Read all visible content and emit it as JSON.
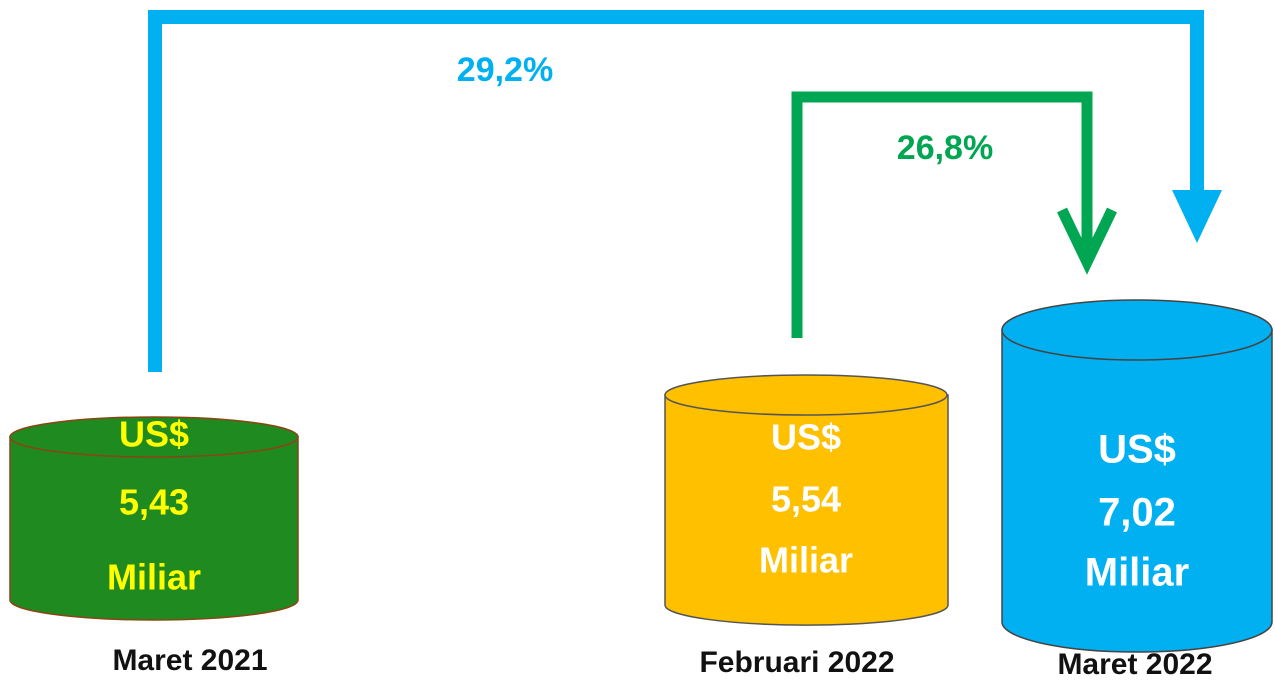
{
  "cylinders": [
    {
      "currency": "US$",
      "amount": "5,43",
      "unit": "Miliar",
      "period": "Maret 2021"
    },
    {
      "currency": "US$",
      "amount": "5,54",
      "unit": "Miliar",
      "period": "Februari 2022"
    },
    {
      "currency": "US$",
      "amount": "7,02",
      "unit": "Miliar",
      "period": "Maret 2022"
    }
  ],
  "changes": [
    {
      "label": "29,2%"
    },
    {
      "label": "26,8%"
    }
  ]
}
